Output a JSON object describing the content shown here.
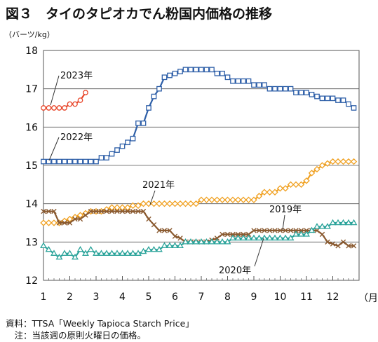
{
  "figure": {
    "title": "図３　タイのタピオカでん粉国内価格の推移",
    "y_unit": "（バーツ/kg）",
    "x_unit": "（月）",
    "source": "資料：TTSA「Weekly Tapioca Starch Price」",
    "note": "　注：当該週の原則火曜日の価格。"
  },
  "chart_data": {
    "type": "line",
    "ylim": [
      12,
      18
    ],
    "yticks": [
      "12",
      "13",
      "14",
      "15",
      "16",
      "17",
      "18"
    ],
    "xlim": [
      1,
      13
    ],
    "xticks": [
      "1",
      "2",
      "3",
      "4",
      "5",
      "6",
      "7",
      "8",
      "9",
      "10",
      "11",
      "12"
    ],
    "grid": "horizontal",
    "series": [
      {
        "name": "2023年",
        "color": "#e8462a",
        "marker": "circle",
        "x": [
          1.0,
          1.2,
          1.4,
          1.6,
          1.8,
          2.0,
          2.2,
          2.4,
          2.6
        ],
        "y": [
          16.5,
          16.5,
          16.5,
          16.5,
          16.5,
          16.6,
          16.6,
          16.7,
          16.9
        ]
      },
      {
        "name": "2022年",
        "color": "#2e5fa8",
        "marker": "square",
        "x": [
          1.0,
          1.2,
          1.4,
          1.6,
          1.8,
          2.0,
          2.2,
          2.4,
          2.6,
          2.8,
          3.0,
          3.2,
          3.4,
          3.6,
          3.8,
          4.0,
          4.2,
          4.4,
          4.6,
          4.8,
          5.0,
          5.2,
          5.4,
          5.6,
          5.8,
          6.0,
          6.2,
          6.4,
          6.6,
          6.8,
          7.0,
          7.2,
          7.4,
          7.6,
          7.8,
          8.0,
          8.2,
          8.4,
          8.6,
          8.8,
          9.0,
          9.2,
          9.4,
          9.6,
          9.8,
          10.0,
          10.2,
          10.4,
          10.6,
          10.8,
          11.0,
          11.2,
          11.4,
          11.6,
          11.8,
          12.0,
          12.2,
          12.4,
          12.6,
          12.8
        ],
        "y": [
          15.1,
          15.1,
          15.1,
          15.1,
          15.1,
          15.1,
          15.1,
          15.1,
          15.1,
          15.1,
          15.1,
          15.2,
          15.2,
          15.3,
          15.4,
          15.5,
          15.6,
          15.7,
          16.1,
          16.1,
          16.5,
          16.8,
          17.0,
          17.3,
          17.35,
          17.4,
          17.45,
          17.5,
          17.5,
          17.5,
          17.5,
          17.5,
          17.5,
          17.4,
          17.4,
          17.3,
          17.2,
          17.2,
          17.2,
          17.2,
          17.1,
          17.1,
          17.1,
          17.0,
          17.0,
          17.0,
          17.0,
          17.0,
          16.9,
          16.9,
          16.9,
          16.85,
          16.8,
          16.75,
          16.75,
          16.75,
          16.7,
          16.7,
          16.6,
          16.5
        ]
      },
      {
        "name": "2021年",
        "color": "#f0a020",
        "marker": "diamond",
        "x": [
          1.0,
          1.2,
          1.4,
          1.6,
          1.8,
          2.0,
          2.2,
          2.4,
          2.6,
          2.8,
          3.0,
          3.2,
          3.4,
          3.6,
          3.8,
          4.0,
          4.2,
          4.4,
          4.6,
          4.8,
          5.0,
          5.2,
          5.4,
          5.6,
          5.8,
          6.0,
          6.2,
          6.4,
          6.6,
          6.8,
          7.0,
          7.2,
          7.4,
          7.6,
          7.8,
          8.0,
          8.2,
          8.4,
          8.6,
          8.8,
          9.0,
          9.2,
          9.4,
          9.6,
          9.8,
          10.0,
          10.2,
          10.4,
          10.6,
          10.8,
          11.0,
          11.2,
          11.4,
          11.6,
          11.8,
          12.0,
          12.2,
          12.4,
          12.6,
          12.8
        ],
        "y": [
          13.5,
          13.5,
          13.5,
          13.5,
          13.55,
          13.6,
          13.65,
          13.7,
          13.75,
          13.8,
          13.8,
          13.8,
          13.85,
          13.9,
          13.9,
          13.9,
          13.9,
          13.95,
          13.95,
          14.0,
          14.0,
          14.0,
          14.0,
          14.0,
          14.0,
          14.0,
          14.0,
          14.0,
          14.0,
          14.0,
          14.1,
          14.1,
          14.1,
          14.1,
          14.1,
          14.1,
          14.1,
          14.1,
          14.1,
          14.1,
          14.1,
          14.2,
          14.3,
          14.3,
          14.3,
          14.4,
          14.4,
          14.5,
          14.5,
          14.5,
          14.6,
          14.8,
          14.9,
          15.0,
          15.05,
          15.1,
          15.1,
          15.1,
          15.1,
          15.1
        ]
      },
      {
        "name": "2019年",
        "color": "#8a5a30",
        "marker": "x",
        "x": [
          1.0,
          1.2,
          1.4,
          1.6,
          1.8,
          2.0,
          2.2,
          2.4,
          2.6,
          2.8,
          3.0,
          3.2,
          3.4,
          3.6,
          3.8,
          4.0,
          4.2,
          4.4,
          4.6,
          4.8,
          5.0,
          5.2,
          5.4,
          5.6,
          5.8,
          6.0,
          6.2,
          6.4,
          6.6,
          6.8,
          7.0,
          7.2,
          7.4,
          7.6,
          7.8,
          8.0,
          8.2,
          8.4,
          8.6,
          8.8,
          9.0,
          9.2,
          9.4,
          9.6,
          9.8,
          10.0,
          10.2,
          10.4,
          10.6,
          10.8,
          11.0,
          11.2,
          11.4,
          11.6,
          11.8,
          12.0,
          12.2,
          12.4,
          12.6,
          12.8
        ],
        "y": [
          13.8,
          13.8,
          13.8,
          13.5,
          13.5,
          13.5,
          13.6,
          13.6,
          13.7,
          13.8,
          13.8,
          13.8,
          13.8,
          13.8,
          13.8,
          13.8,
          13.8,
          13.8,
          13.8,
          13.8,
          13.6,
          13.45,
          13.3,
          13.3,
          13.3,
          13.15,
          13.1,
          13.0,
          13.0,
          13.0,
          13.0,
          13.0,
          13.05,
          13.1,
          13.2,
          13.2,
          13.2,
          13.2,
          13.2,
          13.2,
          13.3,
          13.3,
          13.3,
          13.3,
          13.3,
          13.3,
          13.3,
          13.3,
          13.3,
          13.3,
          13.3,
          13.3,
          13.3,
          13.2,
          13.0,
          12.95,
          12.9,
          13.0,
          12.9,
          12.9
        ]
      },
      {
        "name": "2020年",
        "color": "#2aa39a",
        "marker": "triangle",
        "x": [
          1.0,
          1.2,
          1.4,
          1.6,
          1.8,
          2.0,
          2.2,
          2.4,
          2.6,
          2.8,
          3.0,
          3.2,
          3.4,
          3.6,
          3.8,
          4.0,
          4.2,
          4.4,
          4.6,
          4.8,
          5.0,
          5.2,
          5.4,
          5.6,
          5.8,
          6.0,
          6.2,
          6.4,
          6.6,
          6.8,
          7.0,
          7.2,
          7.4,
          7.6,
          7.8,
          8.0,
          8.2,
          8.4,
          8.6,
          8.8,
          9.0,
          9.2,
          9.4,
          9.6,
          9.8,
          10.0,
          10.2,
          10.4,
          10.6,
          10.8,
          11.0,
          11.2,
          11.4,
          11.6,
          11.8,
          12.0,
          12.2,
          12.4,
          12.6,
          12.8
        ],
        "y": [
          12.9,
          12.8,
          12.7,
          12.6,
          12.7,
          12.7,
          12.6,
          12.8,
          12.7,
          12.8,
          12.7,
          12.7,
          12.7,
          12.7,
          12.7,
          12.7,
          12.7,
          12.7,
          12.7,
          12.75,
          12.8,
          12.8,
          12.8,
          12.9,
          12.9,
          12.9,
          12.9,
          13.0,
          13.0,
          13.0,
          13.0,
          13.0,
          13.0,
          13.0,
          13.0,
          13.0,
          13.1,
          13.1,
          13.1,
          13.1,
          13.1,
          13.1,
          13.1,
          13.1,
          13.1,
          13.1,
          13.1,
          13.1,
          13.2,
          13.2,
          13.2,
          13.3,
          13.4,
          13.4,
          13.4,
          13.5,
          13.5,
          13.5,
          13.5,
          13.5
        ]
      }
    ]
  }
}
